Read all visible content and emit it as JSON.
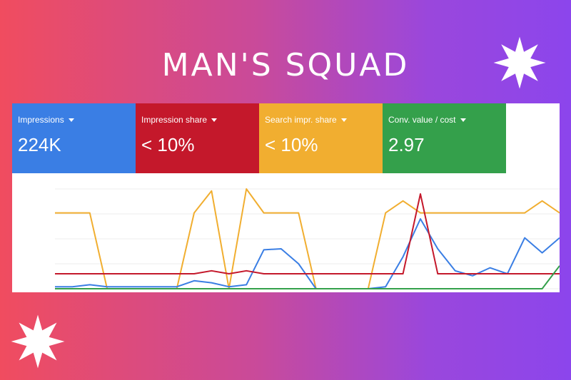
{
  "title": "MAN'S SQUAD",
  "colors": {
    "blue": "#3a7ee4",
    "red": "#c4182b",
    "yellow": "#f1ae30",
    "green": "#34a04b"
  },
  "metrics": [
    {
      "label": "Impressions",
      "value": "224K",
      "color": "#3a7ee4"
    },
    {
      "label": "Impression share",
      "value": "< 10%",
      "color": "#c4182b"
    },
    {
      "label": "Search impr. share",
      "value": "< 10%",
      "color": "#f1ae30"
    },
    {
      "label": "Conv. value / cost",
      "value": "2.97",
      "color": "#34a04b"
    }
  ],
  "chart_data": {
    "type": "line",
    "grid": true,
    "ylim": [
      0,
      100
    ],
    "x": [
      0,
      1,
      2,
      3,
      4,
      5,
      6,
      7,
      8,
      9,
      10,
      11,
      12,
      13,
      14,
      15,
      16,
      17,
      18,
      19,
      20,
      21,
      22,
      23,
      24,
      25,
      26,
      27,
      28,
      29
    ],
    "series": [
      {
        "color": "#f1ae30",
        "values": [
          76,
          76,
          76,
          0,
          0,
          0,
          0,
          0,
          76,
          98,
          0,
          100,
          76,
          76,
          76,
          0,
          0,
          0,
          0,
          76,
          88,
          76,
          76,
          76,
          76,
          76,
          76,
          76,
          88,
          76
        ]
      },
      {
        "color": "#3a7ee4",
        "values": [
          2,
          2,
          4,
          2,
          2,
          2,
          2,
          2,
          8,
          6,
          2,
          4,
          39,
          40,
          25,
          0,
          0,
          0,
          0,
          2,
          32,
          70,
          40,
          18,
          13,
          21,
          15,
          51,
          36,
          51
        ]
      },
      {
        "color": "#c4182b",
        "values": [
          15,
          15,
          15,
          15,
          15,
          15,
          15,
          15,
          15,
          18,
          15,
          18,
          15,
          15,
          15,
          15,
          15,
          15,
          15,
          15,
          15,
          95,
          15,
          15,
          15,
          15,
          15,
          15,
          15,
          15
        ]
      },
      {
        "color": "#34a04b",
        "values": [
          0,
          0,
          0,
          0,
          0,
          0,
          0,
          0,
          0,
          0,
          0,
          0,
          0,
          0,
          0,
          0,
          0,
          0,
          0,
          0,
          0,
          0,
          0,
          0,
          0,
          0,
          0,
          0,
          0,
          23
        ]
      }
    ]
  }
}
